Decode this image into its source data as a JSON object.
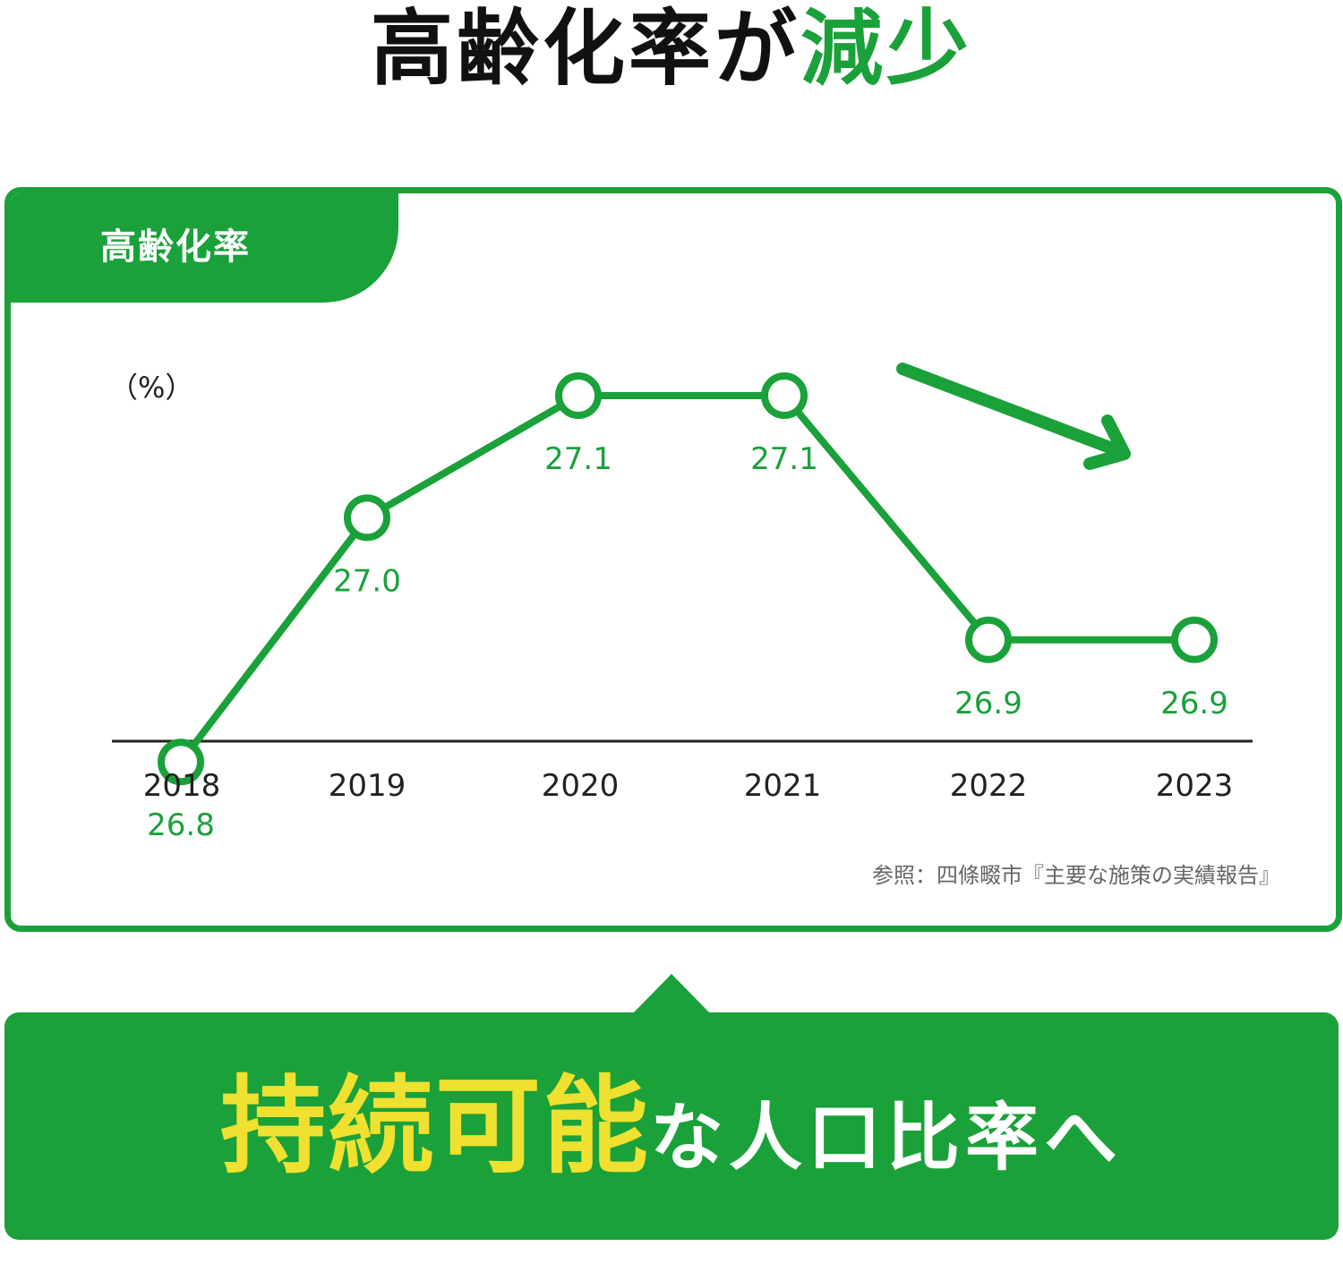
{
  "headline": {
    "part1": "高齢化率が",
    "part2": "減少"
  },
  "panel": {
    "tab_label": "高齢化率"
  },
  "chart_data": {
    "type": "line",
    "title": "高齢化率",
    "ylabel": "（%）",
    "categories": [
      "2018",
      "2019",
      "2020",
      "2021",
      "2022",
      "2023"
    ],
    "values": [
      26.8,
      27.0,
      27.1,
      27.1,
      26.9,
      26.9
    ],
    "value_labels": [
      "26.8",
      "27.0",
      "27.1",
      "27.1",
      "26.9",
      "26.9"
    ],
    "trend_arrow": "down",
    "source_note": "参照：四條畷市『主要な施策の実績報告』"
  },
  "banner": {
    "emphasis": "持続可能",
    "rest": "な人口比率へ"
  },
  "colors": {
    "accent": "#1aa13a",
    "highlight": "#f0e030",
    "text": "#111111"
  }
}
